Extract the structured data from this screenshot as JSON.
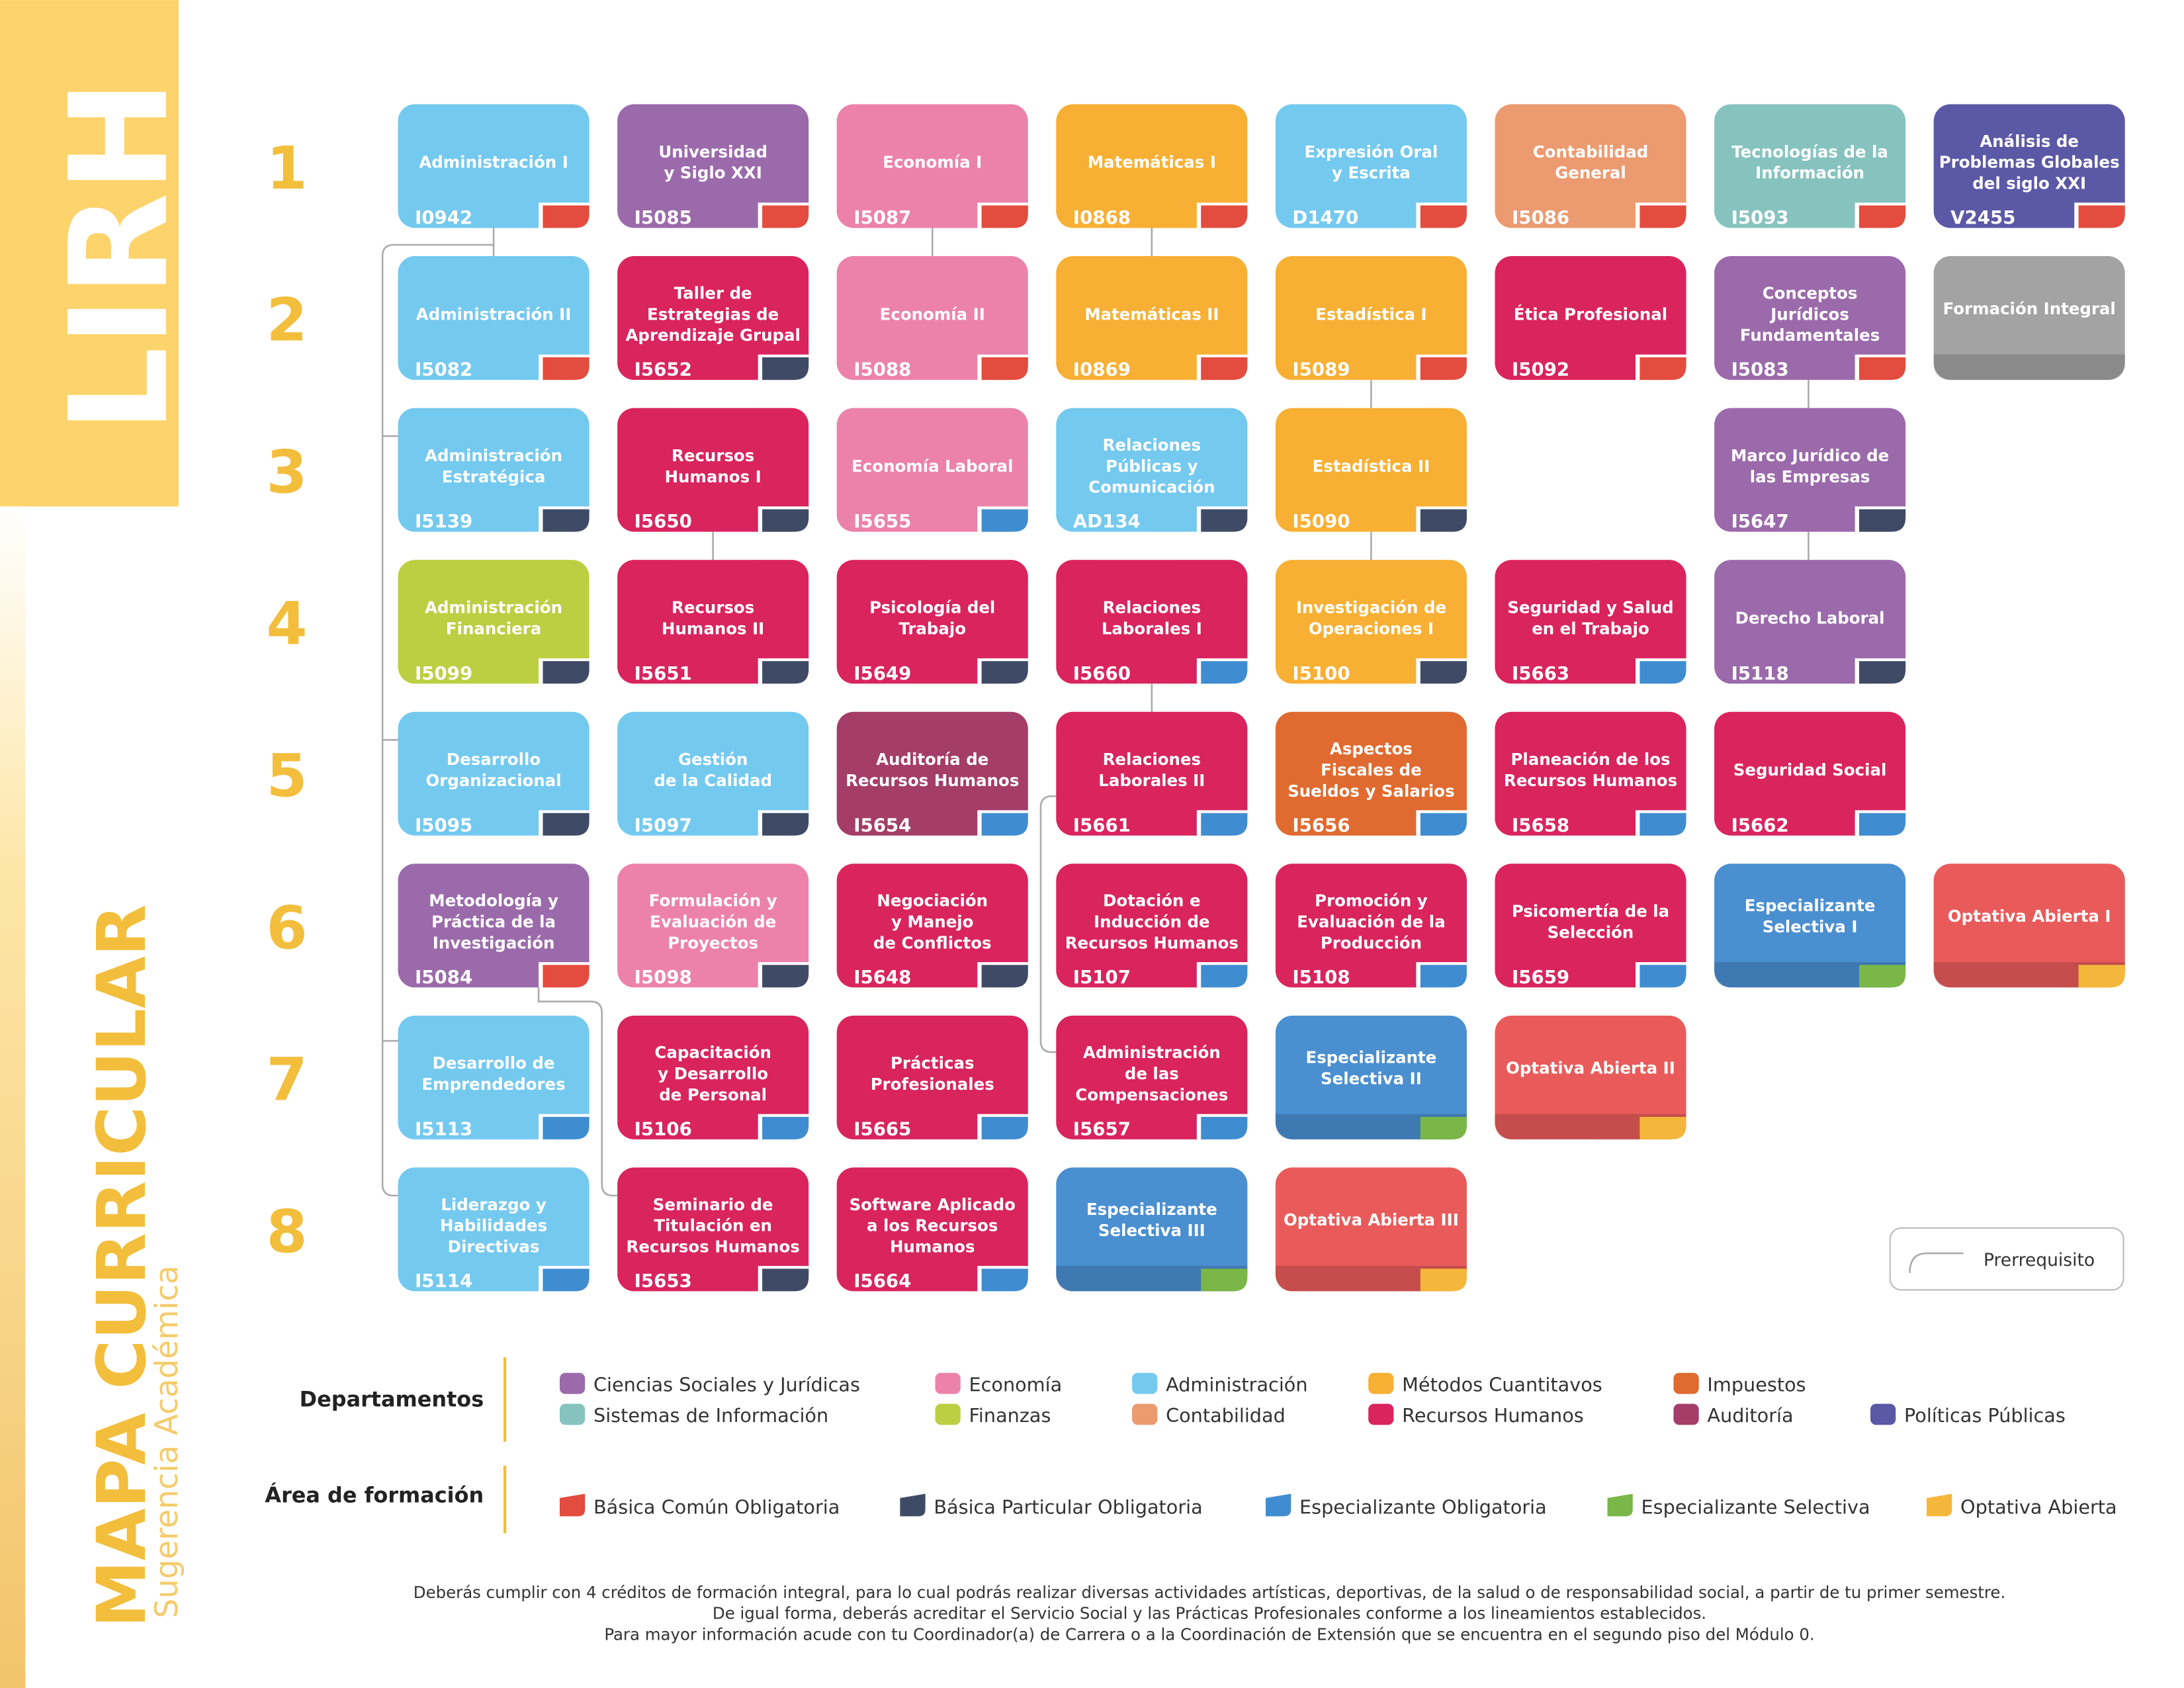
{
  "header": {
    "title": "LIRH",
    "subtitle": "MAPA CURRICULAR",
    "caption": "Sugerencia Académica"
  },
  "semesters": [
    {
      "label": "1",
      "courses": [
        {
          "name": "Administración I",
          "code": "I0942",
          "department": "Administración",
          "area": "Básica Común Obligatoria"
        },
        {
          "name": "Universidad\ny Siglo XXI",
          "code": "I5085",
          "department": "Ciencias Sociales y Jurídicas",
          "area": "Básica Común Obligatoria"
        },
        {
          "name": "Economía I",
          "code": "I5087",
          "department": "Economía",
          "area": "Básica Común Obligatoria"
        },
        {
          "name": "Matemáticas I",
          "code": "I0868",
          "department": "Métodos Cuantitavos",
          "area": "Básica Común Obligatoria"
        },
        {
          "name": "Expresión Oral\ny Escrita",
          "code": "D1470",
          "department": "Administración",
          "area": "Básica Común Obligatoria"
        },
        {
          "name": "Contabilidad\nGeneral",
          "code": "I5086",
          "department": "Contabilidad",
          "area": "Básica Común Obligatoria"
        },
        {
          "name": "Tecnologías de la\nInformación",
          "code": "I5093",
          "department": "Sistemas de Información",
          "area": "Básica Común Obligatoria"
        },
        {
          "name": "Análisis de\nProblemas Globales\ndel siglo XXI",
          "code": "V2455",
          "department": "Políticas Públicas",
          "area": "Básica Común Obligatoria"
        }
      ]
    },
    {
      "label": "2",
      "courses": [
        {
          "name": "Administración II",
          "code": "I5082",
          "department": "Administración",
          "area": "Básica Común Obligatoria"
        },
        {
          "name": "Taller de\nEstrategias de\nAprendizaje Grupal",
          "code": "I5652",
          "department": "Recursos Humanos",
          "area": "Básica Particular Obligatoria"
        },
        {
          "name": "Economía II",
          "code": "I5088",
          "department": "Economía",
          "area": "Básica Común Obligatoria"
        },
        {
          "name": "Matemáticas II",
          "code": "I0869",
          "department": "Métodos Cuantitavos",
          "area": "Básica Común Obligatoria"
        },
        {
          "name": "Estadística I",
          "code": "I5089",
          "department": "Métodos Cuantitavos",
          "area": "Básica Común Obligatoria"
        },
        {
          "name": "Ética Profesional",
          "code": "I5092",
          "department": "Recursos Humanos",
          "area": "Básica Común Obligatoria"
        },
        {
          "name": "Conceptos\nJurídicos\nFundamentales",
          "code": "I5083",
          "department": "Ciencias Sociales y Jurídicas",
          "area": "Básica Común Obligatoria"
        },
        {
          "name": "Formación Integral",
          "color": "#a3a3a3"
        }
      ]
    },
    {
      "label": "3",
      "courses": [
        {
          "name": "Administración\nEstratégica",
          "code": "I5139",
          "department": "Administración",
          "area": "Básica Particular Obligatoria"
        },
        {
          "name": "Recursos\nHumanos I",
          "code": "I5650",
          "department": "Recursos Humanos",
          "area": "Básica Particular Obligatoria"
        },
        {
          "name": "Economía Laboral",
          "code": "I5655",
          "department": "Economía",
          "area": "Especializante Obligatoria"
        },
        {
          "name": "Relaciones\nPúblicas y\nComunicación",
          "code": "AD134",
          "department": "Administración",
          "area": "Básica Particular Obligatoria"
        },
        {
          "name": "Estadística II",
          "code": "I5090",
          "department": "Métodos Cuantitavos",
          "area": "Básica Particular Obligatoria"
        },
        null,
        {
          "name": "Marco Jurídico de\nlas Empresas",
          "code": "I5647",
          "department": "Ciencias Sociales y Jurídicas",
          "area": "Básica Particular Obligatoria"
        }
      ]
    },
    {
      "label": "4",
      "courses": [
        {
          "name": "Administración\nFinanciera",
          "code": "I5099",
          "department": "Finanzas",
          "area": "Básica Particular Obligatoria"
        },
        {
          "name": "Recursos\nHumanos II",
          "code": "I5651",
          "department": "Recursos Humanos",
          "area": "Básica Particular Obligatoria"
        },
        {
          "name": "Psicología del\nTrabajo",
          "code": "I5649",
          "department": "Recursos Humanos",
          "area": "Básica Particular Obligatoria"
        },
        {
          "name": "Relaciones\nLaborales I",
          "code": "I5660",
          "department": "Recursos Humanos",
          "area": "Especializante Obligatoria"
        },
        {
          "name": "Investigación de\nOperaciones I",
          "code": "I5100",
          "department": "Métodos Cuantitavos",
          "area": "Básica Particular Obligatoria"
        },
        {
          "name": "Seguridad y Salud\nen el Trabajo",
          "code": "I5663",
          "department": "Recursos Humanos",
          "area": "Especializante Obligatoria"
        },
        {
          "name": "Derecho Laboral",
          "code": "I5118",
          "department": "Ciencias Sociales y Jurídicas",
          "area": "Básica Particular Obligatoria"
        }
      ]
    },
    {
      "label": "5",
      "courses": [
        {
          "name": "Desarrollo\nOrganizacional",
          "code": "I5095",
          "department": "Administración",
          "area": "Básica Particular Obligatoria"
        },
        {
          "name": "Gestión\nde la Calidad",
          "code": "I5097",
          "department": "Administración",
          "area": "Básica Particular Obligatoria"
        },
        {
          "name": "Auditoría de\nRecursos Humanos",
          "code": "I5654",
          "department": "Auditoría",
          "area": "Especializante Obligatoria"
        },
        {
          "name": "Relaciones\nLaborales II",
          "code": "I5661",
          "department": "Recursos Humanos",
          "area": "Especializante Obligatoria"
        },
        {
          "name": "Aspectos\nFiscales de\nSueldos y Salarios",
          "code": "I5656",
          "department": "Impuestos",
          "area": "Especializante Obligatoria"
        },
        {
          "name": "Planeación de los\nRecursos Humanos",
          "code": "I5658",
          "department": "Recursos Humanos",
          "area": "Especializante Obligatoria"
        },
        {
          "name": "Seguridad Social",
          "code": "I5662",
          "department": "Recursos Humanos",
          "area": "Especializante Obligatoria"
        }
      ]
    },
    {
      "label": "6",
      "courses": [
        {
          "name": "Metodología y\nPráctica de la\nInvestigación",
          "code": "I5084",
          "department": "Ciencias Sociales y Jurídicas",
          "area": "Básica Común Obligatoria"
        },
        {
          "name": "Formulación y\nEvaluación de\nProyectos",
          "code": "I5098",
          "department": "Economía",
          "area": "Básica Particular Obligatoria"
        },
        {
          "name": "Negociación\ny Manejo\nde Conflictos",
          "code": "I5648",
          "department": "Recursos Humanos",
          "area": "Básica Particular Obligatoria"
        },
        {
          "name": "Dotación e\nInducción de\nRecursos Humanos",
          "code": "I5107",
          "department": "Recursos Humanos",
          "area": "Especializante Obligatoria"
        },
        {
          "name": "Promoción y\nEvaluación de la\nProducción",
          "code": "I5108",
          "department": "Recursos Humanos",
          "area": "Especializante Obligatoria"
        },
        {
          "name": "Psicomertía de la\nSelección",
          "code": "I5659",
          "department": "Recursos Humanos",
          "area": "Especializante Obligatoria"
        },
        {
          "name": "Especializante\nSelectiva I",
          "color": "#4a8fd0",
          "area": "Especializante Selectiva"
        },
        {
          "name": "Optativa Abierta I",
          "color": "#e85b5a",
          "area": "Optativa Abierta"
        }
      ]
    },
    {
      "label": "7",
      "courses": [
        {
          "name": "Desarrollo de\nEmprendedores",
          "code": "I5113",
          "department": "Administración",
          "area": "Especializante Obligatoria"
        },
        {
          "name": "Capacitación\ny Desarrollo\nde Personal",
          "code": "I5106",
          "department": "Recursos Humanos",
          "area": "Especializante Obligatoria"
        },
        {
          "name": "Prácticas\nProfesionales",
          "code": "I5665",
          "department": "Recursos Humanos",
          "area": "Especializante Obligatoria"
        },
        {
          "name": "Administración\nde las\nCompensaciones",
          "code": "I5657",
          "department": "Recursos Humanos",
          "area": "Especializante Obligatoria"
        },
        {
          "name": "Especializante\nSelectiva II",
          "color": "#4a8fd0",
          "area": "Especializante Selectiva"
        },
        {
          "name": "Optativa Abierta II",
          "color": "#e85b5a",
          "area": "Optativa Abierta"
        }
      ]
    },
    {
      "label": "8",
      "courses": [
        {
          "name": "Liderazgo y\nHabilidades\nDirectivas",
          "code": "I5114",
          "department": "Administración",
          "area": "Especializante Obligatoria"
        },
        {
          "name": "Seminario de\nTitulación en\nRecursos Humanos",
          "code": "I5653",
          "department": "Recursos Humanos",
          "area": "Básica Particular Obligatoria"
        },
        {
          "name": "Software Aplicado\na los Recursos\nHumanos",
          "code": "I5664",
          "department": "Recursos Humanos",
          "area": "Especializante Obligatoria"
        },
        {
          "name": "Especializante\nSelectiva III",
          "color": "#4a8fd0",
          "area": "Especializante Selectiva"
        },
        {
          "name": "Optativa Abierta III",
          "color": "#e85b5a",
          "area": "Optativa Abierta"
        }
      ]
    }
  ],
  "prerequisite_legend": "Prerrequisito",
  "departments": {
    "title": "Departamentos",
    "items": [
      {
        "name": "Ciencias Sociales y Jurídicas",
        "color": "#9b6aab"
      },
      {
        "name": "Economía",
        "color": "#ec82aa"
      },
      {
        "name": "Administración",
        "color": "#74c9ef"
      },
      {
        "name": "Métodos Cuantitavos",
        "color": "#f7b034"
      },
      {
        "name": "Impuestos",
        "color": "#e06a2f"
      },
      {
        "name": "Sistemas de Información",
        "color": "#86c3bf"
      },
      {
        "name": "Finanzas",
        "color": "#bccf42"
      },
      {
        "name": "Contabilidad",
        "color": "#ec9a70"
      },
      {
        "name": "Recursos Humanos",
        "color": "#d9245e"
      },
      {
        "name": "Auditoría",
        "color": "#a43d68"
      },
      {
        "name": "Políticas Públicas",
        "color": "#5b58a6"
      }
    ]
  },
  "areas": {
    "title": "Área de formación",
    "items": [
      {
        "name": "Básica Común Obligatoria",
        "color": "#e34c3e"
      },
      {
        "name": "Básica Particular Obligatoria",
        "color": "#3f4b66"
      },
      {
        "name": "Especializante Obligatoria",
        "color": "#3f8dd0"
      },
      {
        "name": "Especializante Selectiva",
        "color": "#7ab648"
      },
      {
        "name": "Optativa Abierta",
        "color": "#f5b73b"
      }
    ]
  },
  "notes": [
    "Deberás cumplir con 4 créditos de formación integral, para lo cual podrás realizar diversas actividades artísticas, deportivas, de la salud o de responsabilidad social, a partir de tu primer semestre.",
    "De igual forma, deberás acreditar el Servicio Social y las Prácticas Profesionales conforme a los lineamientos establecidos.",
    "Para mayor información acude con tu Coordinador(a) de Carrera o a la Coordinación de Extensión que se encuentra en el segundo piso del Módulo 0."
  ]
}
